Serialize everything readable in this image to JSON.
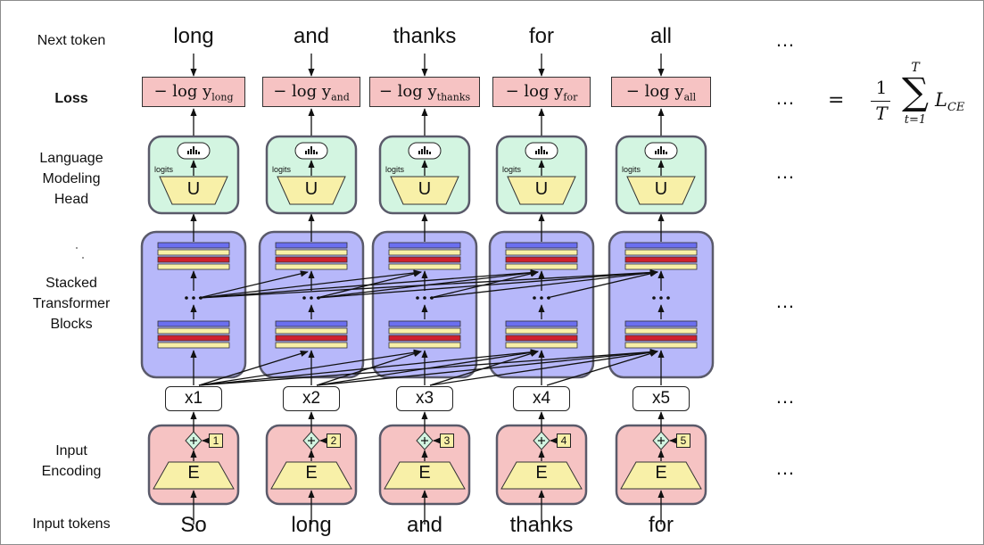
{
  "row_labels": {
    "next_token": "Next token",
    "loss": "Loss",
    "lm_head_1": "Language",
    "lm_head_2": "Modeling",
    "lm_head_3": "Head",
    "stacked_1": "Stacked",
    "stacked_2": "Transformer",
    "stacked_3": "Blocks",
    "input_enc_1": "Input",
    "input_enc_2": "Encoding",
    "input_tokens": "Input tokens"
  },
  "columns": [
    {
      "next": "long",
      "loss_word": "long",
      "x": "x1",
      "pos": "1",
      "input": "So"
    },
    {
      "next": "and",
      "loss_word": "and",
      "x": "x2",
      "pos": "2",
      "input": "long"
    },
    {
      "next": "thanks",
      "loss_word": "thanks",
      "x": "x3",
      "pos": "3",
      "input": "and"
    },
    {
      "next": "for",
      "loss_word": "for",
      "x": "x4",
      "pos": "4",
      "input": "thanks"
    },
    {
      "next": "all",
      "loss_word": "all",
      "x": "x5",
      "pos": "5",
      "input": "for"
    }
  ],
  "loss_prefix": "− log y",
  "logits_label": "logits",
  "unembed_label": "U",
  "embed_label": "E",
  "ellipsis": "…",
  "formula": {
    "equals": "=",
    "numerator": "1",
    "denominator": "T",
    "sum_top": "T",
    "sum_bottom": "t=1",
    "sum_symbol": "∑",
    "term": "L",
    "term_sub": "CE"
  },
  "colors": {
    "pink": "#f6c3c3",
    "green": "#d3f5e1",
    "lavender": "#b7b8fa",
    "yellow": "#f8f0a8",
    "red": "#d0202e",
    "blue": "#6b6ff0"
  }
}
